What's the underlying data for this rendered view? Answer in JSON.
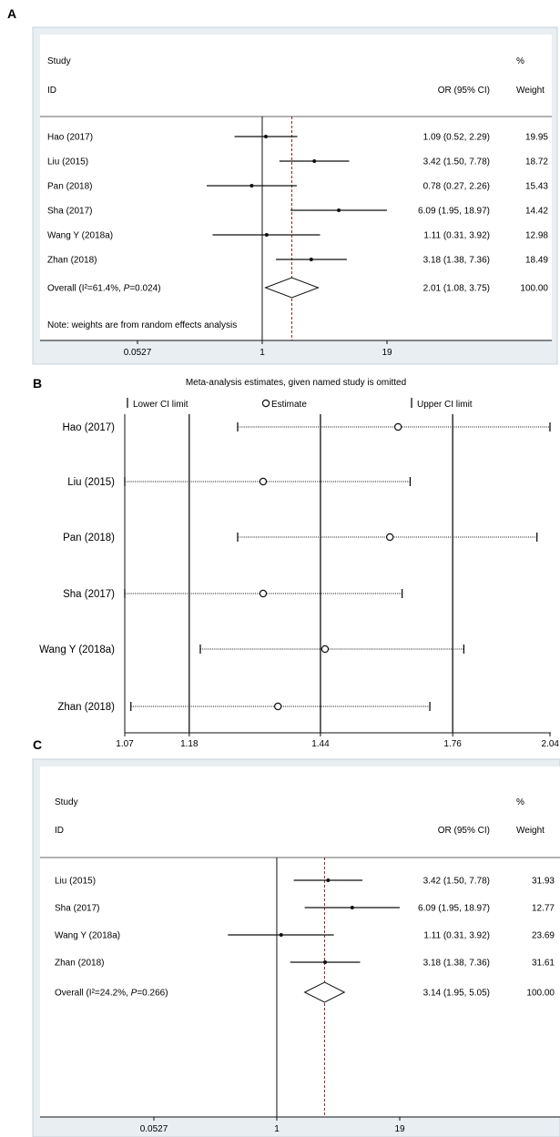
{
  "chart_data": [
    {
      "panel": "A",
      "type": "forest",
      "header": {
        "study": "Study",
        "id": "ID",
        "or_label": "OR (95% CI)",
        "pct": "%",
        "weight": "Weight"
      },
      "studies": [
        {
          "name": "Hao (2017)",
          "or": 1.09,
          "lo": 0.52,
          "hi": 2.29,
          "ci_text": "1.09 (0.52, 2.29)",
          "weight": "19.95"
        },
        {
          "name": "Liu (2015)",
          "or": 3.42,
          "lo": 1.5,
          "hi": 7.78,
          "ci_text": "3.42 (1.50, 7.78)",
          "weight": "18.72"
        },
        {
          "name": "Pan (2018)",
          "or": 0.78,
          "lo": 0.27,
          "hi": 2.26,
          "ci_text": "0.78 (0.27, 2.26)",
          "weight": "15.43"
        },
        {
          "name": "Sha (2017)",
          "or": 6.09,
          "lo": 1.95,
          "hi": 18.97,
          "ci_text": "6.09 (1.95, 18.97)",
          "weight": "14.42"
        },
        {
          "name": "Wang Y (2018a)",
          "or": 1.11,
          "lo": 0.31,
          "hi": 3.92,
          "ci_text": "1.11 (0.31, 3.92)",
          "weight": "12.98"
        },
        {
          "name": "Zhan (2018)",
          "or": 3.18,
          "lo": 1.38,
          "hi": 7.36,
          "ci_text": "3.18 (1.38, 7.36)",
          "weight": "18.49"
        }
      ],
      "overall": {
        "label_pre": "Overall (",
        "i2": "I²=61.4%",
        "sep": ", ",
        "p_label": "P",
        "p_val": "=0.024",
        "label_post": ")",
        "or": 2.01,
        "lo": 1.08,
        "hi": 3.75,
        "ci_text": "2.01 (1.08, 3.75)",
        "weight": "100.00"
      },
      "note": "Note: weights are from random effects analysis",
      "x_ticks": [
        {
          "value": 0.0527,
          "label": "0.0527"
        },
        {
          "value": 1,
          "label": "1"
        },
        {
          "value": 19,
          "label": "19"
        }
      ],
      "x_scale": "log",
      "xlim": [
        0.0527,
        19
      ]
    },
    {
      "panel": "B",
      "type": "sensitivity",
      "title": "Meta-analysis estimates, given named study is omitted",
      "legend": {
        "lower": "Lower CI limit",
        "estimate": "Estimate",
        "upper": "Upper CI limit"
      },
      "reference": {
        "lower": 1.18,
        "estimate": 1.44,
        "upper": 1.76
      },
      "rows": [
        {
          "name": "Hao (2017)",
          "lo": 1.27,
          "est": 1.62,
          "hi": 2.04
        },
        {
          "name": "Liu (2015)",
          "lo": 1.07,
          "est": 1.32,
          "hi": 1.65
        },
        {
          "name": "Pan (2018)",
          "lo": 1.27,
          "est": 1.6,
          "hi": 2.0
        },
        {
          "name": "Sha (2017)",
          "lo": 1.07,
          "est": 1.32,
          "hi": 1.63
        },
        {
          "name": "Wang Y (2018a)",
          "lo": 1.2,
          "est": 1.45,
          "hi": 1.79
        },
        {
          "name": "Zhan (2018)",
          "lo": 1.08,
          "est": 1.35,
          "hi": 1.7
        }
      ],
      "x_ticks": [
        {
          "value": 1.07,
          "label": "1.07"
        },
        {
          "value": 1.18,
          "label": "1.18"
        },
        {
          "value": 1.44,
          "label": "1.44"
        },
        {
          "value": 1.76,
          "label": "1.76"
        },
        {
          "value": 2.04,
          "label": "2.04"
        }
      ],
      "x_scale": "log",
      "xlim": [
        1.07,
        2.04
      ]
    },
    {
      "panel": "C",
      "type": "forest",
      "header": {
        "study": "Study",
        "id": "ID",
        "or_label": "OR (95% CI)",
        "pct": "%",
        "weight": "Weight"
      },
      "studies": [
        {
          "name": "Liu (2015)",
          "or": 3.42,
          "lo": 1.5,
          "hi": 7.78,
          "ci_text": "3.42 (1.50, 7.78)",
          "weight": "31.93"
        },
        {
          "name": "Sha (2017)",
          "or": 6.09,
          "lo": 1.95,
          "hi": 18.97,
          "ci_text": "6.09 (1.95, 18.97)",
          "weight": "12.77"
        },
        {
          "name": "Wang Y (2018a)",
          "or": 1.11,
          "lo": 0.31,
          "hi": 3.92,
          "ci_text": "1.11 (0.31, 3.92)",
          "weight": "23.69"
        },
        {
          "name": "Zhan (2018)",
          "or": 3.18,
          "lo": 1.38,
          "hi": 7.36,
          "ci_text": "3.18 (1.38, 7.36)",
          "weight": "31.61"
        }
      ],
      "overall": {
        "label_pre": "Overall (",
        "i2": "I²=24.2%",
        "sep": ", ",
        "p_label": "P",
        "p_val": "=0.266",
        "label_post": ")",
        "or": 3.14,
        "lo": 1.95,
        "hi": 5.05,
        "ci_text": "3.14 (1.95, 5.05)",
        "weight": "100.00"
      },
      "x_ticks": [
        {
          "value": 0.0527,
          "label": "0.0527"
        },
        {
          "value": 1,
          "label": "1"
        },
        {
          "value": 19,
          "label": "19"
        }
      ],
      "x_scale": "log",
      "xlim": [
        0.0527,
        19
      ]
    }
  ],
  "colors": {
    "frame_bg": "#e8eef2",
    "frame_border": "#c9d3da",
    "ref_dashed": "#8b2323",
    "ink": "#111111"
  }
}
